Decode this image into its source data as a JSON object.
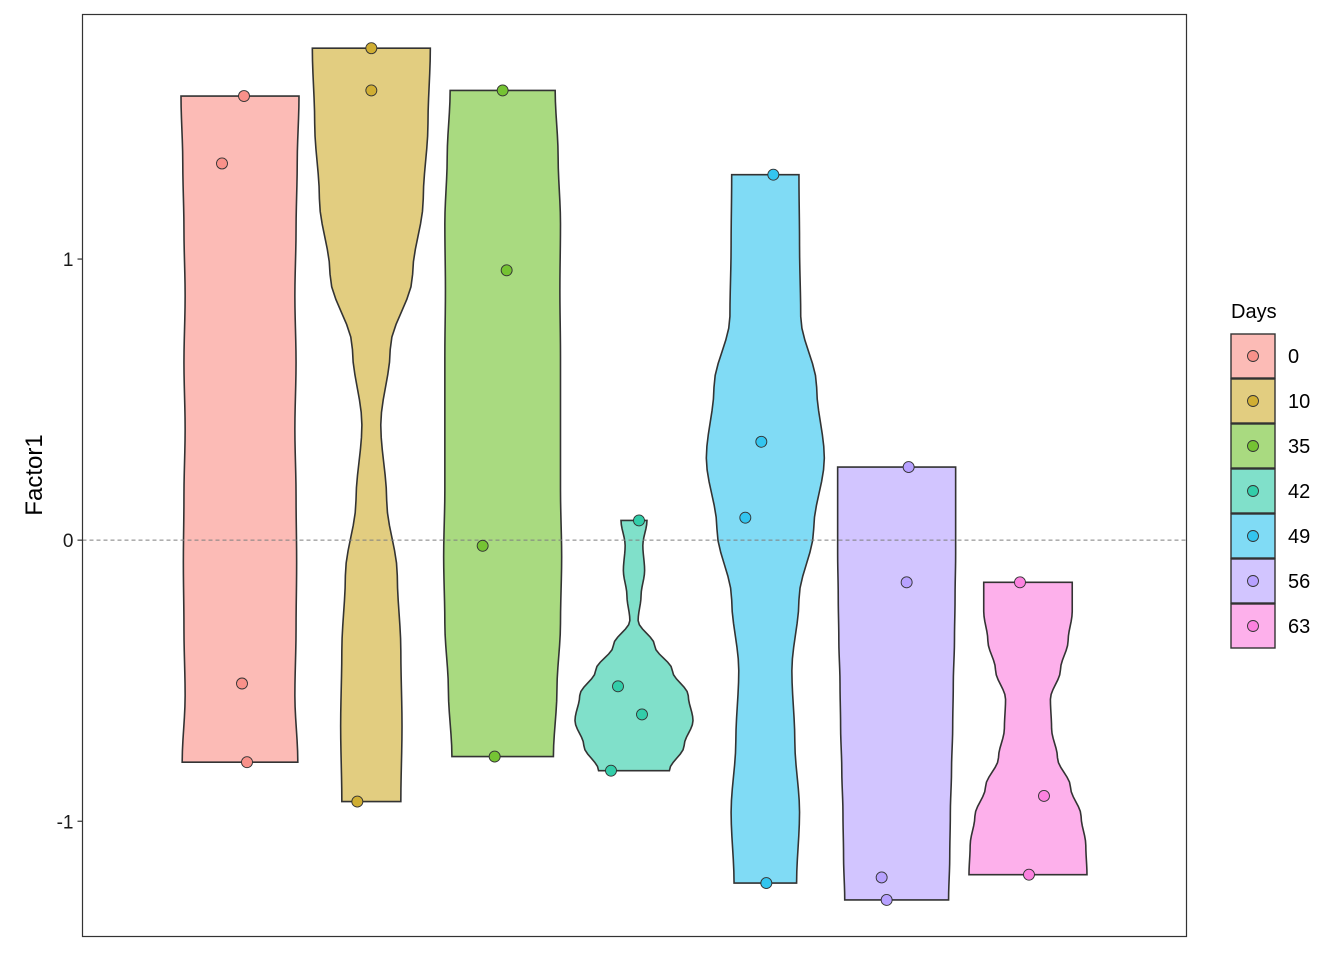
{
  "chart_data": {
    "type": "violin",
    "ylabel": "Factor1",
    "ylim": [
      -1.41,
      1.87
    ],
    "yticks": [
      -1,
      0,
      1
    ],
    "ytick_labels": [
      "-1",
      "0",
      "1"
    ],
    "reference_line": {
      "y": 0,
      "style": "dashed"
    },
    "grid": false,
    "legend": {
      "title": "Days",
      "position": "right"
    },
    "series": [
      {
        "name": "0",
        "color": "#F8766D",
        "points": [
          1.58,
          1.34,
          -0.51,
          -0.79
        ],
        "min": -0.79,
        "max": 1.58,
        "density": [
          0.98,
          0.93,
          0.95,
          0.96,
          0.95,
          0.93,
          0.95,
          0.93,
          0.95,
          0.97,
          1.0
        ]
      },
      {
        "name": "10",
        "color": "#C49A00",
        "points": [
          1.75,
          1.6,
          -0.93
        ],
        "min": -0.93,
        "max": 1.75,
        "density": [
          0.5,
          0.52,
          0.5,
          0.44,
          0.26,
          0.16,
          0.32,
          0.7,
          0.88,
          0.96,
          1.0
        ]
      },
      {
        "name": "35",
        "color": "#53B400",
        "points": [
          1.6,
          0.96,
          -0.02,
          -0.77
        ],
        "min": -0.77,
        "max": 1.6,
        "density": [
          0.86,
          0.92,
          0.98,
          1.0,
          0.98,
          0.98,
          0.98,
          0.97,
          0.98,
          0.94,
          0.89
        ]
      },
      {
        "name": "42",
        "color": "#00C094",
        "points": [
          0.07,
          -0.52,
          -0.62,
          -0.82
        ],
        "min": -0.82,
        "max": 0.07,
        "density": [
          0.6,
          0.85,
          1.0,
          0.92,
          0.65,
          0.35,
          0.07,
          0.12,
          0.18,
          0.15,
          0.22
        ]
      },
      {
        "name": "49",
        "color": "#00B6EB",
        "points": [
          1.3,
          0.35,
          0.08,
          -1.22
        ],
        "min": -1.22,
        "max": 1.3,
        "density": [
          0.53,
          0.58,
          0.5,
          0.45,
          0.57,
          0.82,
          1.0,
          0.87,
          0.6,
          0.58,
          0.57
        ]
      },
      {
        "name": "56",
        "color": "#A58AFF",
        "points": [
          0.26,
          -0.15,
          -1.2,
          -1.28
        ],
        "min": -1.28,
        "max": 0.26,
        "density": [
          0.88,
          0.9,
          0.91,
          0.93,
          0.95,
          0.96,
          0.98,
          0.99,
          1.0,
          1.0,
          1.0
        ]
      },
      {
        "name": "63",
        "color": "#FB61D7",
        "points": [
          -0.15,
          -0.91,
          -1.19
        ],
        "min": -1.19,
        "max": -0.15,
        "density": [
          1.0,
          0.98,
          0.9,
          0.72,
          0.5,
          0.4,
          0.38,
          0.55,
          0.68,
          0.75,
          0.75
        ]
      }
    ]
  }
}
